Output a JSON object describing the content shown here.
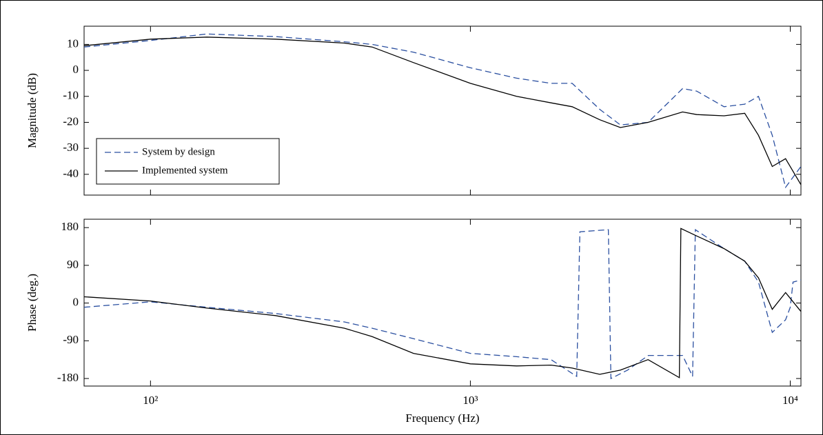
{
  "chart_data": [
    {
      "type": "line",
      "ylabel": "Magnitude (dB)",
      "xscale": "log",
      "xlim": [
        62,
        10800
      ],
      "ylim": [
        -48,
        17
      ],
      "xticks": [
        100,
        1000,
        10000
      ],
      "yticks": [
        -40,
        -30,
        -20,
        -10,
        0,
        10
      ],
      "legend": "lower left",
      "series": [
        {
          "name": "System by design",
          "color": "#2a4fa0",
          "dash": true,
          "x": [
            62,
            100,
            150,
            246,
            404,
            493,
            664,
            1000,
            1395,
            1788,
            2081,
            2538,
            2944,
            3593,
            4607,
            5100,
            6207,
            7204,
            7956,
            8788,
            9669,
            10800
          ],
          "values": [
            9,
            11.5,
            14,
            13,
            11,
            10,
            7,
            1,
            -3,
            -5,
            -5,
            -15,
            -21,
            -20,
            -7,
            -8,
            -14,
            -13,
            -10,
            -25,
            -45,
            -37
          ]
        },
        {
          "name": "Implemented system",
          "color": "#000000",
          "dash": false,
          "x": [
            62,
            100,
            150,
            246,
            404,
            493,
            664,
            1000,
            1395,
            1788,
            2081,
            2538,
            2944,
            3593,
            4607,
            5100,
            6207,
            7204,
            7956,
            8788,
            9669,
            10800
          ],
          "values": [
            9.5,
            12,
            12.8,
            12,
            10.5,
            9,
            3,
            -5,
            -10,
            -12.5,
            -14,
            -19,
            -22,
            -20,
            -16,
            -17,
            -17.5,
            -16.5,
            -25,
            -37,
            -34,
            -44
          ]
        }
      ]
    },
    {
      "type": "line",
      "ylabel": "Phase (deg.)",
      "xlabel": "Frequency (Hz)",
      "xscale": "log",
      "xlim": [
        62,
        10800
      ],
      "ylim": [
        -198,
        200
      ],
      "xticks": [
        {
          "value": 100,
          "label": "10²"
        },
        {
          "value": 1000,
          "label": "10³"
        },
        {
          "value": 10000,
          "label": "10⁴"
        }
      ],
      "yticks": [
        -180,
        -90,
        0,
        90,
        180
      ],
      "series": [
        {
          "name": "System by design",
          "color": "#2a4fa0",
          "dash": true,
          "x": [
            62,
            100,
            150,
            246,
            404,
            493,
            664,
            1000,
            1395,
            1788,
            2150,
            2200,
            2700,
            2750,
            3100,
            3600,
            4607,
            4950,
            5050,
            6207,
            7204,
            7956,
            8788,
            9669,
            10000,
            10200,
            10800
          ],
          "values": [
            -10,
            3,
            -10,
            -25,
            -45,
            -60,
            -85,
            -120,
            -128,
            -135,
            -175,
            170,
            175,
            -180,
            -160,
            -125,
            -125,
            -175,
            175,
            130,
            100,
            50,
            -70,
            -40,
            -10,
            50,
            55
          ]
        },
        {
          "name": "Implemented system",
          "color": "#000000",
          "dash": false,
          "x": [
            62,
            100,
            150,
            246,
            404,
            493,
            664,
            1000,
            1395,
            1788,
            2081,
            2538,
            2944,
            3593,
            4500,
            4550,
            5100,
            6207,
            7204,
            7956,
            8788,
            9669,
            10800
          ],
          "values": [
            15,
            5,
            -12,
            -30,
            -60,
            -80,
            -120,
            -145,
            -150,
            -148,
            -155,
            -170,
            -160,
            -135,
            -178,
            178,
            160,
            130,
            100,
            60,
            -15,
            25,
            -20
          ]
        }
      ]
    }
  ]
}
